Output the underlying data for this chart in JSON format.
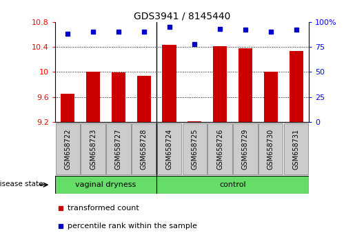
{
  "title": "GDS3941 / 8145440",
  "samples": [
    "GSM658722",
    "GSM658723",
    "GSM658727",
    "GSM658728",
    "GSM658724",
    "GSM658725",
    "GSM658726",
    "GSM658729",
    "GSM658730",
    "GSM658731"
  ],
  "red_values": [
    9.65,
    10.01,
    9.99,
    9.94,
    10.43,
    9.21,
    10.41,
    10.38,
    10.01,
    10.34
  ],
  "blue_values": [
    88,
    90,
    90,
    90,
    95,
    78,
    93,
    92,
    90,
    92
  ],
  "group_divider": 4,
  "group_labels": [
    "vaginal dryness",
    "control"
  ],
  "ylim_left": [
    9.2,
    10.8
  ],
  "ylim_right": [
    0,
    100
  ],
  "yticks_left": [
    9.2,
    9.6,
    10.0,
    10.4,
    10.8
  ],
  "yticks_right": [
    0,
    25,
    50,
    75,
    100
  ],
  "ytick_labels_left": [
    "9.2",
    "9.6",
    "10",
    "10.4",
    "10.8"
  ],
  "ytick_labels_right": [
    "0",
    "25",
    "50",
    "75",
    "100%"
  ],
  "grid_values": [
    9.6,
    10.0,
    10.4
  ],
  "bar_color": "#cc0000",
  "dot_color": "#0000cc",
  "bar_width": 0.55,
  "disease_state_label": "disease state",
  "legend_red": "transformed count",
  "legend_blue": "percentile rank within the sample",
  "group_bg": "#66dd66",
  "tick_box_bg": "#cccccc"
}
